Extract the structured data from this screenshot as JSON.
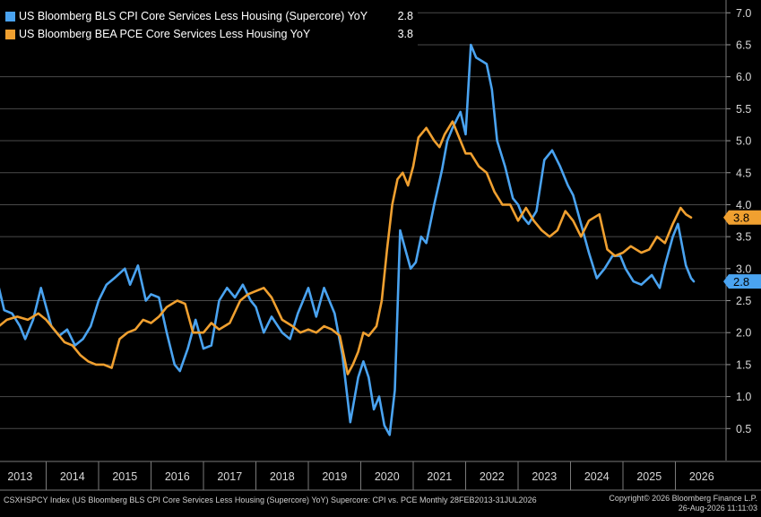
{
  "chart_data": {
    "type": "line",
    "title": "",
    "xlabel": "",
    "ylabel": "",
    "y_axis_side": "right",
    "ylim": [
      0,
      7.2
    ],
    "y_ticks": [
      "0.5",
      "1.0",
      "1.5",
      "2.0",
      "2.5",
      "3.0",
      "3.5",
      "4.0",
      "4.5",
      "5.0",
      "5.5",
      "6.0",
      "6.5",
      "7.0"
    ],
    "x_ticks": [
      "2013",
      "2014",
      "2015",
      "2016",
      "2017",
      "2018",
      "2019",
      "2020",
      "2021",
      "2022",
      "2023",
      "2024",
      "2025",
      "2026"
    ],
    "xlim": [
      2013.0,
      2026.7
    ],
    "grid": true,
    "legend_position": "top-left",
    "series": [
      {
        "name": "US Bloomberg BLS CPI Core Services Less Housing (Supercore) YoY",
        "color": "#4aa3f0",
        "last_value": "2.8",
        "x": [
          2013.1,
          2013.2,
          2013.35,
          2013.5,
          2013.6,
          2013.75,
          2013.9,
          2014.0,
          2014.1,
          2014.25,
          2014.4,
          2014.55,
          2014.7,
          2014.85,
          2015.0,
          2015.15,
          2015.3,
          2015.5,
          2015.6,
          2015.75,
          2015.9,
          2016.0,
          2016.15,
          2016.3,
          2016.45,
          2016.55,
          2016.7,
          2016.85,
          2017.0,
          2017.15,
          2017.3,
          2017.45,
          2017.6,
          2017.75,
          2017.9,
          2018.0,
          2018.15,
          2018.3,
          2018.5,
          2018.65,
          2018.8,
          2019.0,
          2019.15,
          2019.3,
          2019.5,
          2019.65,
          2019.8,
          2019.95,
          2020.05,
          2020.15,
          2020.25,
          2020.35,
          2020.45,
          2020.55,
          2020.65,
          2020.75,
          2020.85,
          2020.95,
          2021.05,
          2021.15,
          2021.25,
          2021.4,
          2021.55,
          2021.65,
          2021.75,
          2021.9,
          2022.0,
          2022.1,
          2022.2,
          2022.3,
          2022.4,
          2022.5,
          2022.6,
          2022.75,
          2022.9,
          2023.0,
          2023.1,
          2023.2,
          2023.35,
          2023.5,
          2023.65,
          2023.8,
          2023.95,
          2024.05,
          2024.2,
          2024.35,
          2024.5,
          2024.65,
          2024.8,
          2024.95,
          2025.05,
          2025.2,
          2025.35,
          2025.55,
          2025.7,
          2025.8,
          2025.95,
          2026.05,
          2026.2,
          2026.3,
          2026.35
        ],
        "y": [
          2.7,
          2.35,
          2.3,
          2.1,
          1.9,
          2.2,
          2.7,
          2.4,
          2.1,
          1.95,
          2.05,
          1.8,
          1.9,
          2.1,
          2.5,
          2.75,
          2.85,
          3.0,
          2.75,
          3.05,
          2.5,
          2.6,
          2.55,
          2.0,
          1.5,
          1.4,
          1.75,
          2.2,
          1.75,
          1.8,
          2.5,
          2.7,
          2.55,
          2.75,
          2.5,
          2.4,
          2.0,
          2.25,
          2.0,
          1.9,
          2.3,
          2.7,
          2.25,
          2.7,
          2.3,
          1.65,
          0.6,
          1.3,
          1.55,
          1.3,
          0.8,
          1.0,
          0.55,
          0.4,
          1.1,
          3.6,
          3.3,
          3.0,
          3.1,
          3.5,
          3.4,
          4.0,
          4.55,
          5.0,
          5.2,
          5.45,
          5.1,
          6.5,
          6.3,
          6.25,
          6.2,
          5.8,
          5.0,
          4.6,
          4.1,
          4.0,
          3.8,
          3.7,
          3.9,
          4.7,
          4.85,
          4.6,
          4.3,
          4.15,
          3.7,
          3.25,
          2.85,
          3.0,
          3.2,
          3.2,
          3.0,
          2.8,
          2.75,
          2.9,
          2.7,
          3.05,
          3.5,
          3.7,
          3.05,
          2.85,
          2.8
        ]
      },
      {
        "name": "US Bloomberg BEA PCE Core Services Less Housing YoY",
        "color": "#f0a030",
        "last_value": "3.8",
        "x": [
          2013.1,
          2013.25,
          2013.45,
          2013.65,
          2013.85,
          2014.0,
          2014.15,
          2014.35,
          2014.5,
          2014.65,
          2014.8,
          2014.95,
          2015.1,
          2015.25,
          2015.4,
          2015.55,
          2015.7,
          2015.85,
          2016.0,
          2016.15,
          2016.3,
          2016.5,
          2016.65,
          2016.8,
          2017.0,
          2017.15,
          2017.3,
          2017.5,
          2017.7,
          2017.85,
          2018.0,
          2018.15,
          2018.3,
          2018.5,
          2018.7,
          2018.85,
          2019.0,
          2019.15,
          2019.3,
          2019.45,
          2019.6,
          2019.75,
          2019.85,
          2019.95,
          2020.05,
          2020.15,
          2020.3,
          2020.4,
          2020.5,
          2020.6,
          2020.7,
          2020.8,
          2020.9,
          2021.0,
          2021.1,
          2021.25,
          2021.4,
          2021.5,
          2021.6,
          2021.75,
          2021.9,
          2022.0,
          2022.1,
          2022.25,
          2022.4,
          2022.55,
          2022.7,
          2022.85,
          2023.0,
          2023.15,
          2023.3,
          2023.45,
          2023.6,
          2023.75,
          2023.9,
          2024.05,
          2024.2,
          2024.35,
          2024.55,
          2024.7,
          2024.85,
          2025.0,
          2025.15,
          2025.35,
          2025.5,
          2025.65,
          2025.8,
          2025.95,
          2026.1,
          2026.2,
          2026.3
        ],
        "y": [
          2.1,
          2.2,
          2.25,
          2.2,
          2.3,
          2.2,
          2.05,
          1.85,
          1.8,
          1.65,
          1.55,
          1.5,
          1.5,
          1.45,
          1.9,
          2.0,
          2.05,
          2.2,
          2.15,
          2.25,
          2.4,
          2.5,
          2.45,
          2.0,
          2.0,
          2.15,
          2.05,
          2.15,
          2.5,
          2.6,
          2.65,
          2.7,
          2.55,
          2.2,
          2.1,
          2.0,
          2.05,
          2.0,
          2.1,
          2.05,
          1.95,
          1.35,
          1.5,
          1.7,
          2.0,
          1.95,
          2.1,
          2.5,
          3.3,
          4.0,
          4.4,
          4.5,
          4.3,
          4.6,
          5.05,
          5.2,
          5.0,
          4.9,
          5.1,
          5.3,
          5.0,
          4.8,
          4.8,
          4.6,
          4.5,
          4.2,
          4.0,
          4.0,
          3.75,
          3.95,
          3.75,
          3.6,
          3.5,
          3.6,
          3.9,
          3.75,
          3.5,
          3.75,
          3.85,
          3.3,
          3.2,
          3.25,
          3.35,
          3.25,
          3.3,
          3.5,
          3.4,
          3.7,
          3.95,
          3.85,
          3.8
        ]
      }
    ]
  },
  "footer": {
    "left_text": "CSXHSPCY Index (US Bloomberg BLS CPI Core Services Less Housing (Supercore) YoY) Supercore: CPI vs. PCE Monthly 28FEB2013-31JUL2026",
    "copyright": "Copyright© 2026 Bloomberg Finance L.P.",
    "timestamp": "26-Aug-2026 11:11:03"
  }
}
